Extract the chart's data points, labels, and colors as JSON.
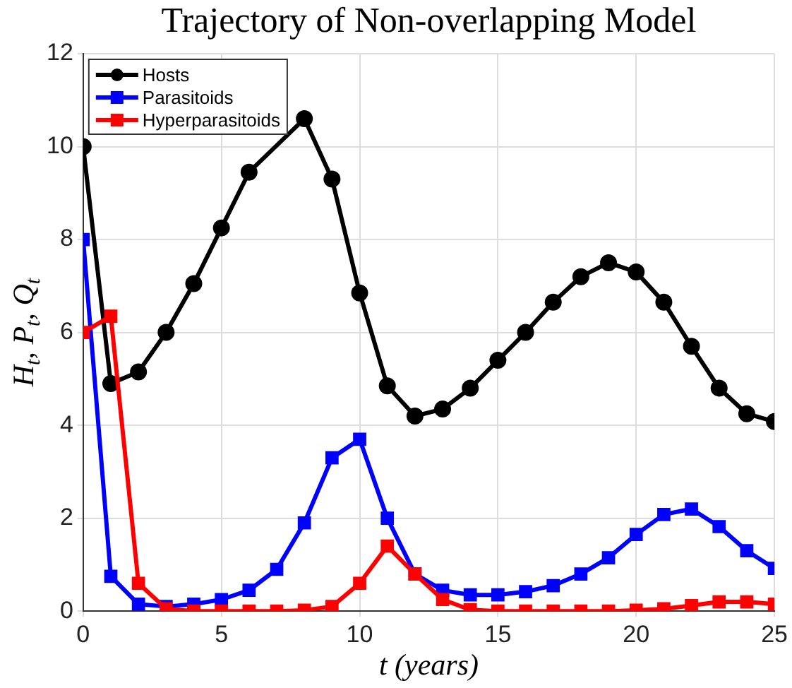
{
  "chart_data": {
    "type": "line",
    "title": "Trajectory of Non-overlapping Model",
    "xlabel": "t (years)",
    "ylabel": "H$_{t}$, P$_{t}$, Q$_{t}$",
    "x": [
      0,
      1,
      2,
      3,
      4,
      5,
      6,
      7,
      8,
      9,
      10,
      11,
      12,
      13,
      14,
      15,
      16,
      17,
      18,
      19,
      20,
      21,
      22,
      23,
      24,
      25
    ],
    "series": [
      {
        "name": "Hosts",
        "color": "#000000",
        "marker": "circle",
        "values": [
          10,
          4.9,
          5.15,
          6.0,
          7.05,
          8.25,
          9.45,
          null,
          10.6,
          9.3,
          6.85,
          4.85,
          4.2,
          4.35,
          4.8,
          5.4,
          6.0,
          6.65,
          7.2,
          7.5,
          7.3,
          6.65,
          5.7,
          4.8,
          4.25,
          4.08
        ]
      },
      {
        "name": "Parasitoids",
        "color": "#0000ff",
        "marker": "square",
        "values": [
          8,
          0.75,
          0.15,
          0.1,
          0.15,
          0.25,
          0.45,
          0.9,
          1.9,
          3.3,
          3.7,
          2.0,
          0.8,
          0.45,
          0.35,
          0.35,
          0.42,
          0.55,
          0.8,
          1.15,
          1.65,
          2.08,
          2.2,
          1.82,
          1.3,
          0.92
        ]
      },
      {
        "name": "Hyperparasitoids",
        "color": "#ff0000",
        "marker": "square",
        "values": [
          6,
          6.35,
          0.6,
          0.05,
          0,
          0,
          0,
          0,
          0.02,
          0.1,
          0.6,
          1.4,
          0.8,
          0.25,
          0.03,
          0,
          0,
          0,
          0,
          0,
          0.02,
          0.05,
          0.12,
          0.2,
          0.2,
          0.15
        ]
      }
    ],
    "xlim": [
      0,
      25
    ],
    "xticks": [
      0,
      5,
      10,
      15,
      20,
      25
    ],
    "ylim": [
      0,
      12
    ],
    "yticks": [
      0,
      2,
      4,
      6,
      8,
      10,
      12
    ],
    "grid": true,
    "legend": "top left",
    "line_style": "solid"
  }
}
